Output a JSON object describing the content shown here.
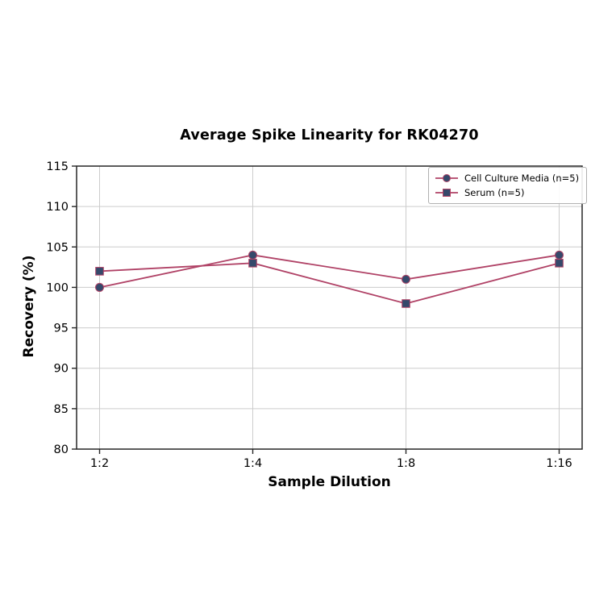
{
  "chart_data": {
    "type": "line",
    "title": "Average Spike Linearity for RK04270",
    "xlabel": "Sample Dilution",
    "ylabel": "Recovery (%)",
    "categories": [
      "1:2",
      "1:4",
      "1:8",
      "1:16"
    ],
    "series": [
      {
        "name": "Cell Culture Media (n=5)",
        "marker": "circle",
        "values": [
          100,
          104,
          101,
          104
        ]
      },
      {
        "name": "Serum (n=5)",
        "marker": "square",
        "values": [
          102,
          103,
          98,
          103
        ]
      }
    ],
    "ylim": [
      80,
      115
    ],
    "yticks": [
      80,
      85,
      90,
      95,
      100,
      105,
      110,
      115
    ],
    "grid": true,
    "legend_position": "upper right",
    "colors": {
      "line": "#b04266",
      "marker": "#35496b",
      "grid": "#cccccc",
      "spine": "#262626",
      "tick_text": "#000000",
      "background": "#ffffff"
    }
  }
}
